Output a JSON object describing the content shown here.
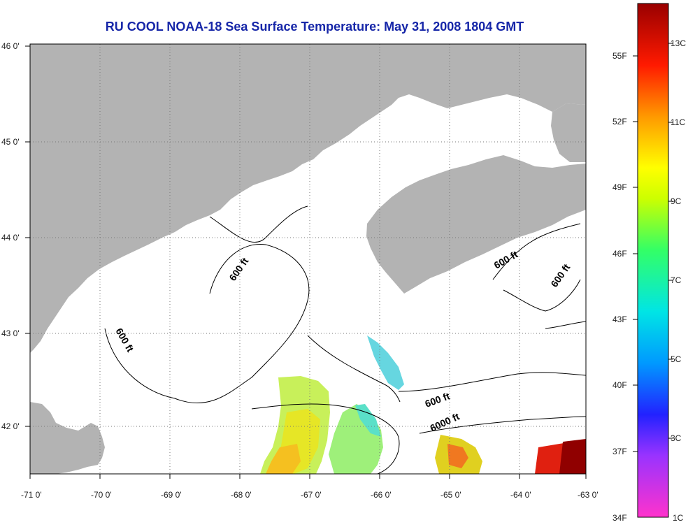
{
  "title": "RU COOL  NOAA-18  Sea Surface Temperature:  May 31, 2008 1804 GMT",
  "axes": {
    "lon_ticks": [
      "-71 0'",
      "-70 0'",
      "-69 0'",
      "-68 0'",
      "-67 0'",
      "-66 0'",
      "-65 0'",
      "-64 0'",
      "-63 0'"
    ],
    "lat_ticks": [
      "46 0'",
      "45 0'",
      "44 0'",
      "43 0'",
      "42 0'"
    ]
  },
  "contours": [
    "600 ft",
    "600 ft",
    "600 ft",
    "600 ft",
    "600 ft",
    "6000 ft"
  ],
  "colorbar": {
    "f_labels": [
      "55F",
      "52F",
      "49F",
      "46F",
      "43F",
      "40F",
      "37F",
      "34F"
    ],
    "c_labels": [
      "13C",
      "11C",
      "9C",
      "7C",
      "5C",
      "3C",
      "1C"
    ]
  },
  "colors": {
    "land": "#b3b3b3",
    "title": "#1626a8"
  }
}
